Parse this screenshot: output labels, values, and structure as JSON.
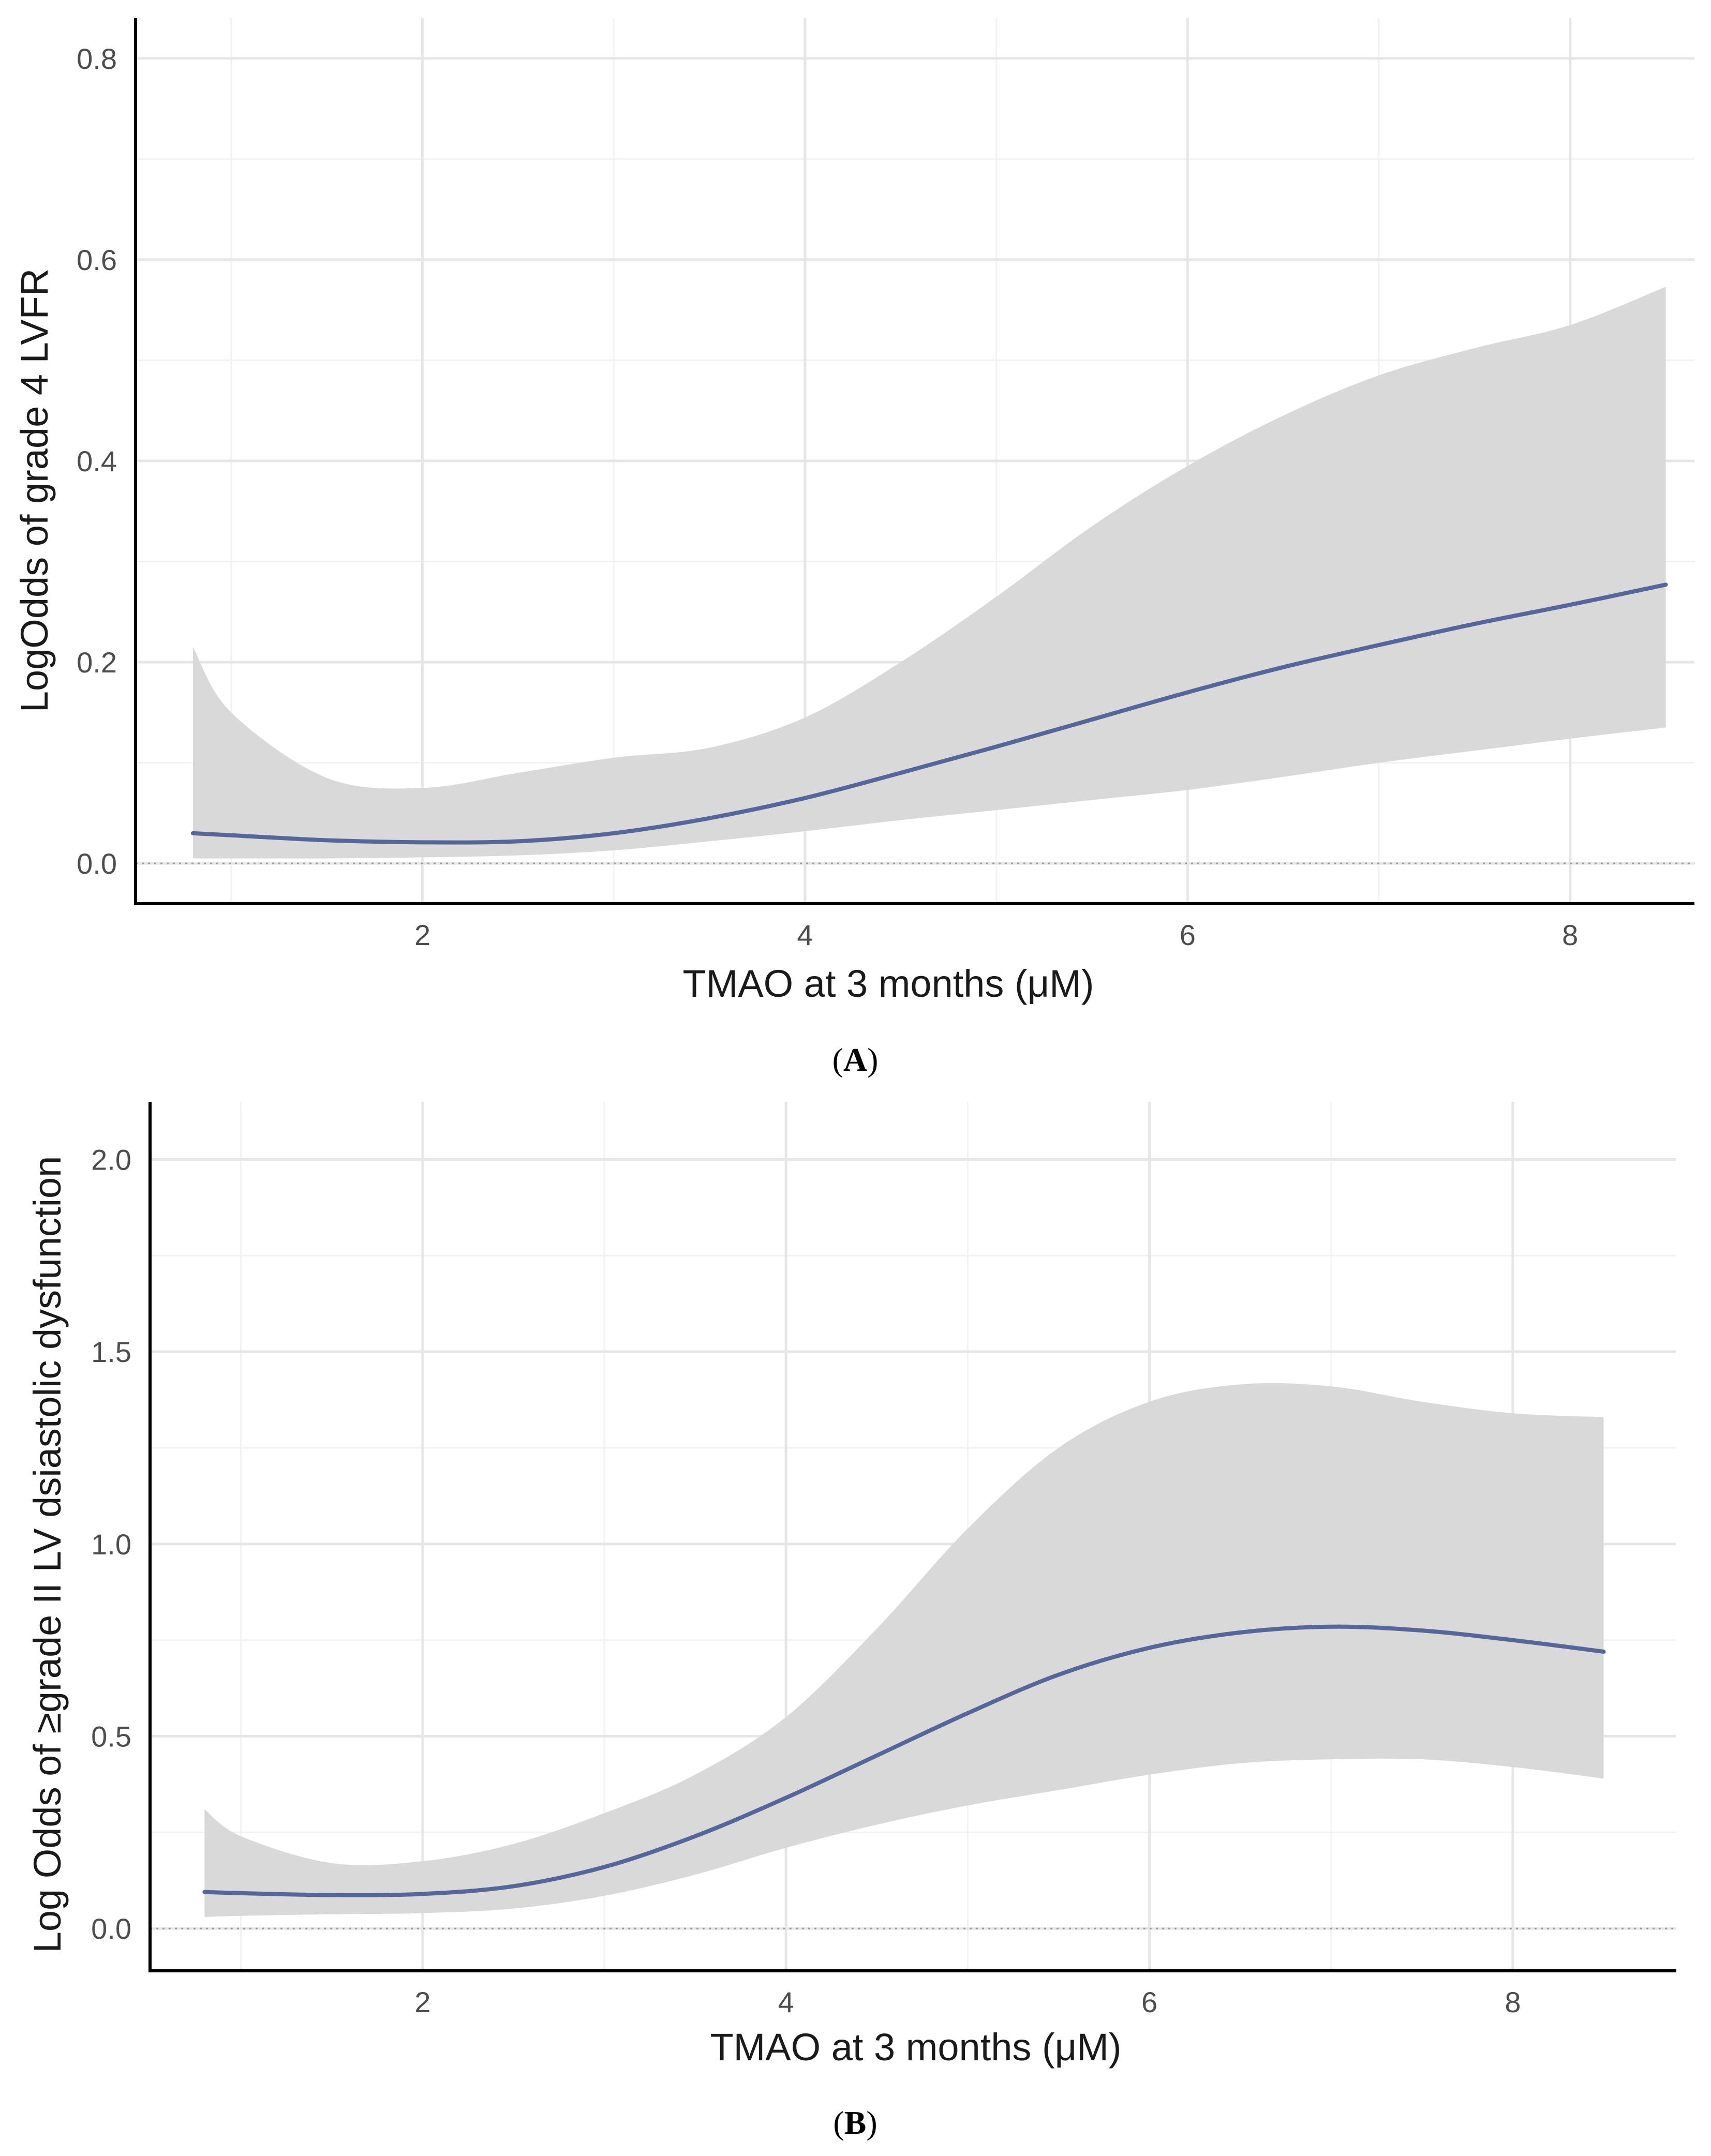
{
  "chart_data": [
    {
      "panel": "A",
      "type": "line",
      "title": "",
      "xlabel": "TMAO at 3 months (μM)",
      "ylabel": "LogOdds of grade 4 LVFR",
      "xlim": [
        0.5,
        8.65
      ],
      "ylim": [
        -0.04,
        0.84
      ],
      "xticks": [
        2,
        4,
        6,
        8
      ],
      "xtick_labels": [
        "2",
        "4",
        "6",
        "8"
      ],
      "yticks": [
        0.0,
        0.2,
        0.4,
        0.6,
        0.8
      ],
      "ytick_labels": [
        "0.0",
        "0.2",
        "0.4",
        "0.6",
        "0.8"
      ],
      "grid": true,
      "reference_line": 0.0,
      "series": [
        {
          "name": "estimate",
          "x": [
            0.8,
            1.0,
            1.5,
            2.0,
            2.5,
            3.0,
            3.5,
            4.0,
            4.5,
            5.0,
            5.5,
            6.0,
            6.5,
            7.0,
            7.5,
            8.0,
            8.5
          ],
          "y": [
            0.03,
            0.028,
            0.023,
            0.021,
            0.022,
            0.03,
            0.045,
            0.065,
            0.09,
            0.116,
            0.143,
            0.17,
            0.195,
            0.217,
            0.238,
            0.257,
            0.277
          ],
          "lower": [
            0.005,
            0.005,
            0.005,
            0.006,
            0.008,
            0.013,
            0.022,
            0.032,
            0.043,
            0.053,
            0.063,
            0.073,
            0.086,
            0.1,
            0.112,
            0.124,
            0.135
          ],
          "upper": [
            0.215,
            0.15,
            0.085,
            0.075,
            0.09,
            0.105,
            0.115,
            0.145,
            0.2,
            0.265,
            0.335,
            0.395,
            0.445,
            0.485,
            0.512,
            0.535,
            0.573
          ]
        }
      ]
    },
    {
      "panel": "B",
      "type": "line",
      "title": "",
      "xlabel": "TMAO at 3 months (μM)",
      "ylabel": "Log Odds of ≥grade II LV dsiastolic dysfunction",
      "xlim": [
        0.5,
        8.9
      ],
      "ylim": [
        -0.11,
        2.15
      ],
      "xticks": [
        2,
        4,
        6,
        8
      ],
      "xtick_labels": [
        "2",
        "4",
        "6",
        "8"
      ],
      "yticks": [
        0.0,
        0.5,
        1.0,
        1.5,
        2.0
      ],
      "ytick_labels": [
        "0.0",
        "0.5",
        "1.0",
        "1.5",
        "2.0"
      ],
      "grid": true,
      "reference_line": 0.0,
      "series": [
        {
          "name": "estimate",
          "x": [
            0.8,
            1.0,
            1.5,
            2.0,
            2.5,
            3.0,
            3.5,
            4.0,
            4.5,
            5.0,
            5.5,
            6.0,
            6.5,
            7.0,
            7.5,
            8.0,
            8.5
          ],
          "y": [
            0.095,
            0.092,
            0.087,
            0.09,
            0.11,
            0.16,
            0.24,
            0.34,
            0.45,
            0.56,
            0.66,
            0.73,
            0.77,
            0.785,
            0.775,
            0.75,
            0.72
          ],
          "lower": [
            0.03,
            0.033,
            0.037,
            0.04,
            0.052,
            0.085,
            0.14,
            0.21,
            0.27,
            0.32,
            0.36,
            0.4,
            0.43,
            0.44,
            0.44,
            0.42,
            0.39
          ],
          "upper": [
            0.31,
            0.24,
            0.17,
            0.175,
            0.22,
            0.3,
            0.4,
            0.55,
            0.78,
            1.04,
            1.25,
            1.37,
            1.415,
            1.41,
            1.37,
            1.34,
            1.33
          ]
        }
      ]
    }
  ]
}
